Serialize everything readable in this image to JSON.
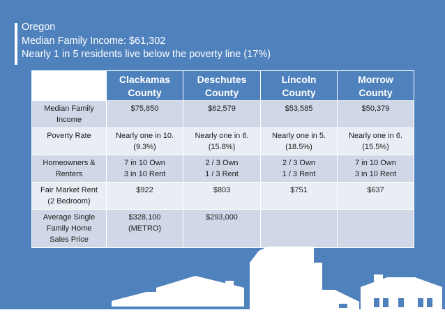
{
  "header": {
    "state": "Oregon",
    "income_line": "Median Family Income: $61,302",
    "poverty_line": "Nearly 1 in 5 residents live below the poverty line (17%)"
  },
  "table": {
    "columns": [
      {
        "line1": "Clackamas",
        "line2": "County"
      },
      {
        "line1": "Deschutes",
        "line2": "County"
      },
      {
        "line1": "Lincoln",
        "line2": "County"
      },
      {
        "line1": "Morrow",
        "line2": "County"
      }
    ],
    "rows": [
      {
        "label": [
          "Median Family",
          "Income"
        ],
        "cells": [
          [
            "$75,850"
          ],
          [
            "$62,579"
          ],
          [
            "$53,585"
          ],
          [
            "$50,379"
          ]
        ]
      },
      {
        "label": [
          "Poverty Rate"
        ],
        "cells": [
          [
            "Nearly one in 10.",
            "(9.3%)"
          ],
          [
            "Nearly one in 6.",
            "(15.8%)"
          ],
          [
            "Nearly one in 5.",
            "(18.5%)"
          ],
          [
            "Nearly one in 6.",
            "(15.5%)"
          ]
        ]
      },
      {
        "label": [
          "Homeowners &",
          "Renters"
        ],
        "cells": [
          [
            "7 in 10 Own",
            "3 in 10 Rent"
          ],
          [
            "2 / 3 Own",
            "1 / 3 Rent"
          ],
          [
            "2 / 3 Own",
            "1 / 3 Rent"
          ],
          [
            "7 in 10 Own",
            "3 in 10 Rent"
          ]
        ]
      },
      {
        "label": [
          "Fair Market Rent",
          "(2 Bedroom)"
        ],
        "cells": [
          [
            "$922"
          ],
          [
            "$803"
          ],
          [
            "$751"
          ],
          [
            "$637"
          ]
        ]
      },
      {
        "label": [
          "Average Single",
          "Family Home",
          "Sales Price"
        ],
        "cells": [
          [
            "$328,100",
            "(METRO)"
          ],
          [
            "$293,000"
          ],
          [],
          []
        ]
      }
    ]
  },
  "colors": {
    "background": "#4f81bd",
    "row_dark": "#d0d8e8",
    "row_light": "#e9edf4"
  }
}
